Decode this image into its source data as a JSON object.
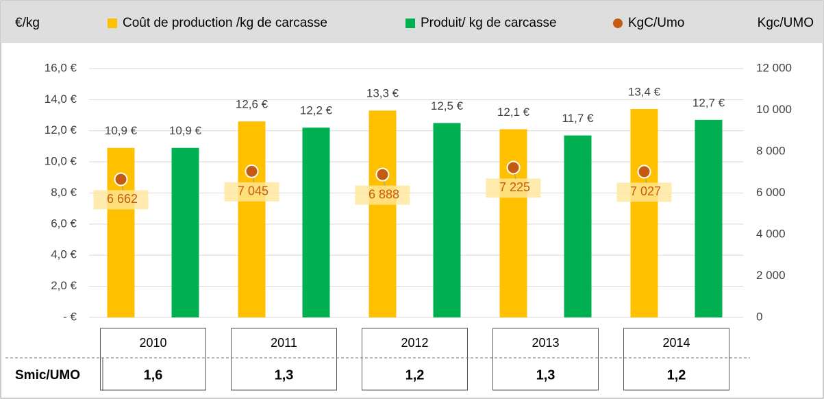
{
  "chart_data": {
    "type": "bar",
    "y_label": "€/kg",
    "y2_label": "Kgc/UMO",
    "categories": [
      "2010",
      "2011",
      "2012",
      "2013",
      "2014"
    ],
    "series": [
      {
        "name": "Coût de production /kg de carcasse",
        "type": "bar",
        "color": "#ffc000",
        "values": [
          10.9,
          12.6,
          13.3,
          12.1,
          13.4
        ],
        "value_labels": [
          "10,9 €",
          "12,6 €",
          "13,3 €",
          "12,1 €",
          "13,4 €"
        ]
      },
      {
        "name": "Produit/ kg de carcasse",
        "type": "bar",
        "color": "#00b050",
        "values": [
          10.9,
          12.2,
          12.5,
          11.7,
          12.7
        ],
        "value_labels": [
          "10,9 €",
          "12,2 €",
          "12,5 €",
          "11,7 €",
          "12,7 €"
        ]
      },
      {
        "name": "KgC/Umo",
        "type": "scatter",
        "axis": "y2",
        "color": "#c55a11",
        "values": [
          6662,
          7045,
          6888,
          7225,
          7027
        ],
        "value_labels": [
          "6 662",
          "7 045",
          "6 888",
          "7 225",
          "7 027"
        ]
      }
    ],
    "ylim": [
      0,
      16
    ],
    "yticks": [
      {
        "value": 0,
        "label": "-   €"
      },
      {
        "value": 2,
        "label": "2,0 €"
      },
      {
        "value": 4,
        "label": "4,0 €"
      },
      {
        "value": 6,
        "label": "6,0 €"
      },
      {
        "value": 8,
        "label": "8,0 €"
      },
      {
        "value": 10,
        "label": "10,0 €"
      },
      {
        "value": 12,
        "label": "12,0 €"
      },
      {
        "value": 14,
        "label": "14,0 €"
      },
      {
        "value": 16,
        "label": "16,0 €"
      }
    ],
    "y2lim": [
      0,
      12000
    ],
    "y2ticks": [
      0,
      {
        "value": 2000,
        "label": "2 000"
      },
      {
        "value": 4000,
        "label": "4 000"
      },
      {
        "value": 6000,
        "label": "6 000"
      },
      {
        "value": 8000,
        "label": "8 000"
      },
      {
        "value": 10000,
        "label": "10 000"
      },
      {
        "value": 12000,
        "label": "12 000"
      }
    ],
    "grid": true,
    "table": {
      "row_label": "Smic/UMO",
      "values": [
        "1,6",
        "1,3",
        "1,2",
        "1,3",
        "1,2"
      ]
    }
  }
}
